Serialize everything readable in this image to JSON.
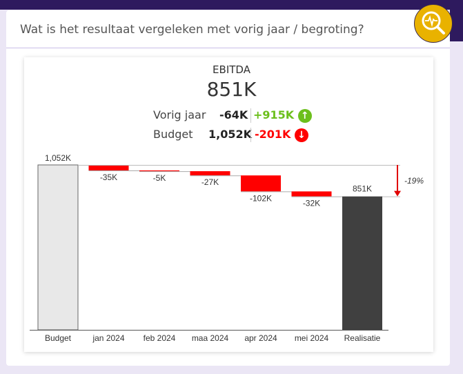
{
  "header": {
    "title": "Wat is het resultaat vergeleken met vorig jaar / begroting?",
    "icon": "analytics-search-icon"
  },
  "kpi": {
    "label": "EBITDA",
    "value": "851K",
    "rows": [
      {
        "label": "Vorig jaar",
        "value": "-64K",
        "delta": "+915K",
        "delta_color": "#6cbf1c",
        "direction": "up",
        "icon": "↑"
      },
      {
        "label": "Budget",
        "value": "1,052K",
        "delta": "-201K",
        "delta_color": "#ff0000",
        "direction": "down",
        "icon": "↓"
      }
    ]
  },
  "chart_data": {
    "type": "waterfall",
    "categories": [
      "Budget",
      "jan 2024",
      "feb 2024",
      "maa 2024",
      "apr 2024",
      "mei 2024",
      "Realisatie"
    ],
    "values": [
      1052,
      -35,
      -5,
      -27,
      -102,
      -32,
      851
    ],
    "labels": [
      "1,052K",
      "-35K",
      "-5K",
      "-27K",
      "-102K",
      "-32K",
      "851K"
    ],
    "variance_label": "-19%",
    "colors": {
      "budget": "#e8e8e8",
      "negative": "#ff0000",
      "total": "#404040",
      "arrow": "#e00000"
    }
  }
}
